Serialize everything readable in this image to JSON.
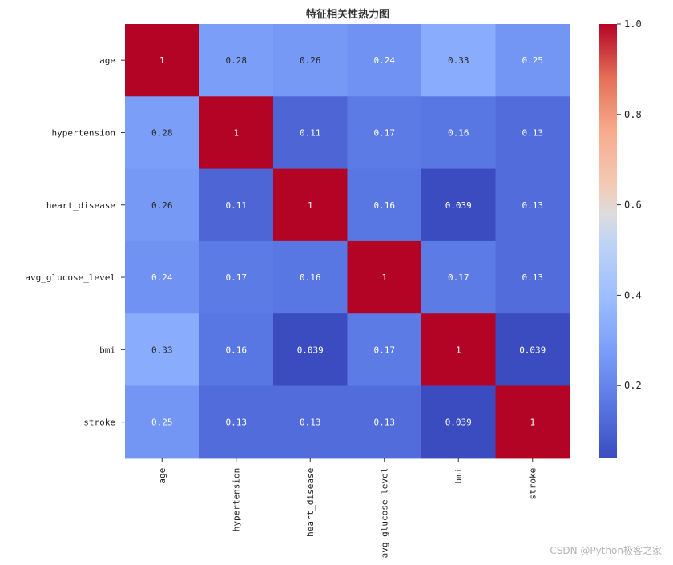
{
  "chart_data": {
    "type": "heatmap",
    "title": "特征相关性热力图",
    "row_labels": [
      "age",
      "hypertension",
      "heart_disease",
      "avg_glucose_level",
      "bmi",
      "stroke"
    ],
    "col_labels": [
      "age",
      "hypertension",
      "heart_disease",
      "avg_glucose_level",
      "bmi",
      "stroke"
    ],
    "values": [
      [
        1,
        0.28,
        0.26,
        0.24,
        0.33,
        0.25
      ],
      [
        0.28,
        1,
        0.11,
        0.17,
        0.16,
        0.13
      ],
      [
        0.26,
        0.11,
        1,
        0.16,
        0.039,
        0.13
      ],
      [
        0.24,
        0.17,
        0.16,
        1,
        0.17,
        0.13
      ],
      [
        0.33,
        0.16,
        0.039,
        0.17,
        1,
        0.039
      ],
      [
        0.25,
        0.13,
        0.13,
        0.13,
        0.039,
        1
      ]
    ],
    "cell_text": [
      [
        "1",
        "0.28",
        "0.26",
        "0.24",
        "0.33",
        "0.25"
      ],
      [
        "0.28",
        "1",
        "0.11",
        "0.17",
        "0.16",
        "0.13"
      ],
      [
        "0.26",
        "0.11",
        "1",
        "0.16",
        "0.039",
        "0.13"
      ],
      [
        "0.24",
        "0.17",
        "0.16",
        "1",
        "0.17",
        "0.13"
      ],
      [
        "0.33",
        "0.16",
        "0.039",
        "0.17",
        "1",
        "0.039"
      ],
      [
        "0.25",
        "0.13",
        "0.13",
        "0.13",
        "0.039",
        "1"
      ]
    ],
    "colormap": "coolwarm",
    "vmin": 0.039,
    "vmax": 1.0,
    "colorbar_ticks": [
      0.2,
      0.4,
      0.6,
      0.8,
      1.0
    ],
    "colorbar_tick_labels": [
      "0.2",
      "0.4",
      "0.6",
      "0.8",
      "1.0"
    ],
    "annotated": true
  },
  "watermark": "CSDN @Python极客之家"
}
